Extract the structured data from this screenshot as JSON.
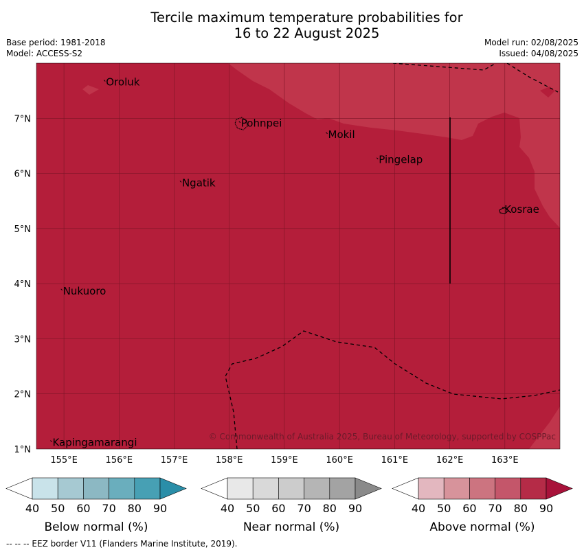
{
  "title": {
    "line1": "Tercile maximum temperature probabilities for",
    "line2": "16 to 22 August 2025"
  },
  "meta": {
    "base_period": "Base period: 1981-2018",
    "model": "Model: ACCESS-S2",
    "model_run": "Model run: 02/08/2025",
    "issued": "Issued: 04/08/2025"
  },
  "map": {
    "lon_range": [
      154.5,
      164.0
    ],
    "lat_range": [
      1.0,
      8.0
    ],
    "lon_ticks": [
      {
        "value": 155,
        "label": "155°E"
      },
      {
        "value": 156,
        "label": "156°E"
      },
      {
        "value": 157,
        "label": "157°E"
      },
      {
        "value": 158,
        "label": "158°E"
      },
      {
        "value": 159,
        "label": "159°E"
      },
      {
        "value": 160,
        "label": "160°E"
      },
      {
        "value": 161,
        "label": "161°E"
      },
      {
        "value": 162,
        "label": "162°E"
      },
      {
        "value": 163,
        "label": "163°E"
      }
    ],
    "lat_ticks": [
      {
        "value": 1,
        "label": "1°N"
      },
      {
        "value": 2,
        "label": "2°N"
      },
      {
        "value": 3,
        "label": "3°N"
      },
      {
        "value": 4,
        "label": "4°N"
      },
      {
        "value": 5,
        "label": "5°N"
      },
      {
        "value": 6,
        "label": "6°N"
      },
      {
        "value": 7,
        "label": "7°N"
      }
    ],
    "grid": true,
    "dominant_category": "Above normal",
    "dominant_probability": "80-90",
    "colors": {
      "dominant": "#b41e3a",
      "lighter": "#c0354b",
      "grid": "#7a1426"
    },
    "places": [
      {
        "name": "Oroluk",
        "lon": 155.75,
        "lat": 7.62
      },
      {
        "name": "Pohnpei",
        "lon": 158.2,
        "lat": 6.87
      },
      {
        "name": "Mokil",
        "lon": 159.78,
        "lat": 6.67
      },
      {
        "name": "Pingelap",
        "lon": 160.7,
        "lat": 6.21
      },
      {
        "name": "Ngatik",
        "lon": 157.13,
        "lat": 5.79
      },
      {
        "name": "Kosrae",
        "lon": 162.98,
        "lat": 5.31
      },
      {
        "name": "Nukuoro",
        "lon": 154.97,
        "lat": 3.83
      },
      {
        "name": "Kapingamarangi",
        "lon": 154.78,
        "lat": 1.08
      }
    ],
    "copyright": "© Commonwealth of Australia 2025, Bureau of Meteorology, supported by COSPPac"
  },
  "colorbars": [
    {
      "name": "Below normal (%)",
      "colors": [
        "#ffffff",
        "#c9e3ea",
        "#a6c9d2",
        "#8cb8c3",
        "#6aaebd",
        "#47a0b4",
        "#2a8ea8"
      ],
      "ticks": [
        "40",
        "50",
        "60",
        "70",
        "80",
        "90"
      ]
    },
    {
      "name": "Near normal (%)",
      "colors": [
        "#ffffff",
        "#e8e8e8",
        "#d9d9d9",
        "#cccccc",
        "#b5b5b5",
        "#a3a3a3",
        "#8a8a8a"
      ],
      "ticks": [
        "40",
        "50",
        "60",
        "70",
        "80",
        "90"
      ]
    },
    {
      "name": "Above normal (%)",
      "colors": [
        "#ffffff",
        "#e3b7bf",
        "#d7939b",
        "#cc7480",
        "#c4566a",
        "#b52b47",
        "#a8123a"
      ],
      "ticks": [
        "40",
        "50",
        "60",
        "70",
        "80",
        "90"
      ]
    }
  ],
  "footer": "--  --  -- EEZ border V11 (Flanders Marine Institute, 2019)."
}
